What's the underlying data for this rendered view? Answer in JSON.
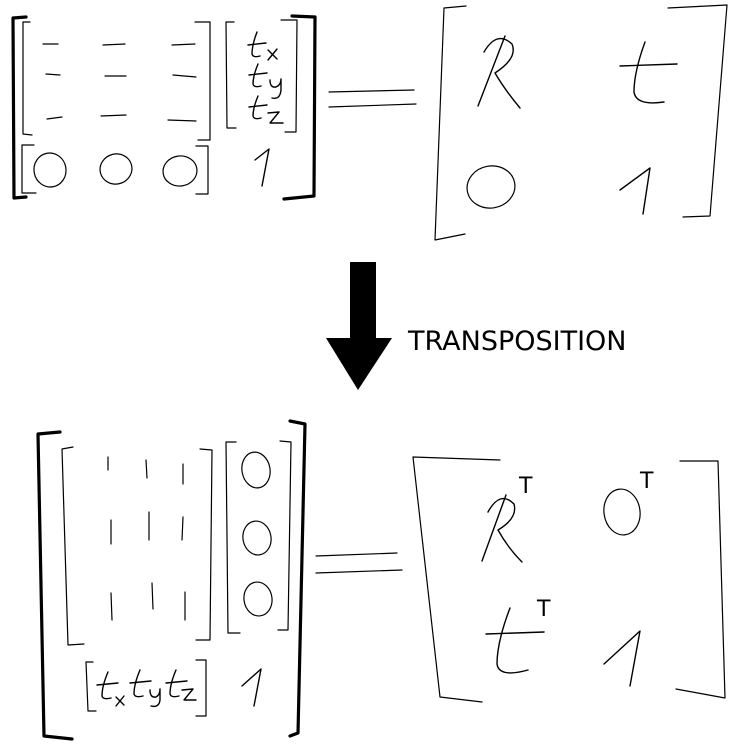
{
  "arrow_label": "TRANSPOSITION",
  "top_matrix": {
    "t_entries": [
      "tx",
      "ty",
      "tz"
    ],
    "bottom_row": [
      "0",
      "0",
      "0",
      "1"
    ]
  },
  "top_block": {
    "rotation": "R",
    "translation": "t",
    "zero": "0",
    "one": "1"
  },
  "bottom_block": {
    "rotation": "R",
    "zero": "0",
    "translation": "t",
    "one": "1",
    "transpose_mark": "T"
  }
}
